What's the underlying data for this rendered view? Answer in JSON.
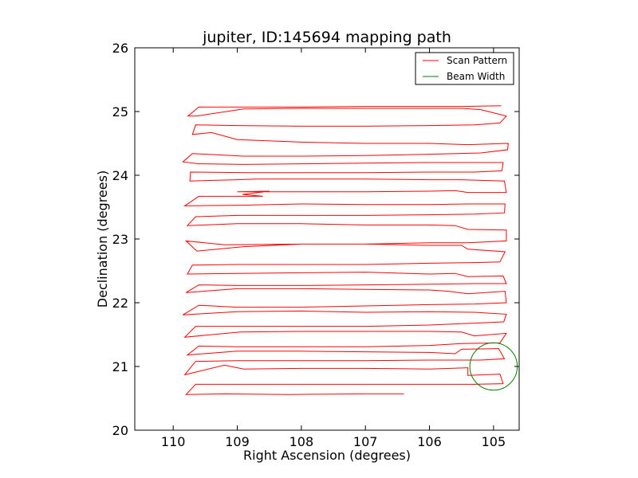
{
  "chart_data": {
    "type": "line",
    "title": "jupiter, ID:145694 mapping path",
    "xlabel": "Right Ascension (degrees)",
    "ylabel": "Declination (degrees)",
    "xlim": [
      110.6,
      104.6
    ],
    "ylim": [
      20,
      26
    ],
    "xticks": [
      110,
      109,
      108,
      107,
      106,
      105
    ],
    "yticks": [
      20,
      21,
      22,
      23,
      24,
      25,
      26
    ],
    "xtick_labels": [
      "110",
      "109",
      "108",
      "107",
      "106",
      "105"
    ],
    "ytick_labels": [
      "20",
      "21",
      "22",
      "23",
      "24",
      "25",
      "26"
    ],
    "grid": false,
    "legend_position": "top-right",
    "series": [
      {
        "name": "Scan Pattern",
        "color": "#ff0000",
        "points": [
          [
            106.4,
            20.57
          ],
          [
            107.0,
            20.57
          ],
          [
            108.2,
            20.56
          ],
          [
            109.2,
            20.57
          ],
          [
            109.8,
            20.56
          ],
          [
            109.65,
            20.72
          ],
          [
            109.0,
            20.72
          ],
          [
            108.0,
            20.72
          ],
          [
            107.0,
            20.72
          ],
          [
            106.0,
            20.72
          ],
          [
            105.3,
            20.72
          ],
          [
            104.85,
            20.73
          ],
          [
            104.9,
            20.88
          ],
          [
            105.4,
            20.86
          ],
          [
            105.4,
            20.98
          ],
          [
            106.0,
            20.96
          ],
          [
            107.0,
            20.97
          ],
          [
            108.0,
            20.97
          ],
          [
            108.9,
            20.96
          ],
          [
            109.2,
            21.02
          ],
          [
            109.82,
            20.87
          ],
          [
            109.65,
            21.08
          ],
          [
            109.0,
            21.09
          ],
          [
            108.0,
            21.09
          ],
          [
            107.0,
            21.09
          ],
          [
            106.0,
            21.1
          ],
          [
            105.2,
            21.1
          ],
          [
            104.83,
            21.12
          ],
          [
            104.92,
            21.28
          ],
          [
            105.5,
            21.27
          ],
          [
            105.6,
            21.2
          ],
          [
            106.0,
            21.22
          ],
          [
            107.0,
            21.23
          ],
          [
            108.0,
            21.24
          ],
          [
            109.0,
            21.24
          ],
          [
            109.78,
            21.18
          ],
          [
            109.6,
            21.32
          ],
          [
            109.0,
            21.31
          ],
          [
            108.0,
            21.31
          ],
          [
            107.0,
            21.31
          ],
          [
            106.0,
            21.33
          ],
          [
            105.5,
            21.36
          ],
          [
            104.9,
            21.37
          ],
          [
            104.8,
            21.52
          ],
          [
            105.3,
            21.48
          ],
          [
            105.5,
            21.54
          ],
          [
            106.0,
            21.55
          ],
          [
            107.0,
            21.55
          ],
          [
            108.0,
            21.55
          ],
          [
            108.95,
            21.54
          ],
          [
            109.82,
            21.46
          ],
          [
            109.65,
            21.63
          ],
          [
            109.0,
            21.63
          ],
          [
            108.0,
            21.63
          ],
          [
            107.0,
            21.63
          ],
          [
            106.0,
            21.65
          ],
          [
            105.3,
            21.68
          ],
          [
            104.84,
            21.7
          ],
          [
            104.8,
            21.82
          ],
          [
            105.3,
            21.85
          ],
          [
            106.0,
            21.86
          ],
          [
            107.0,
            21.85
          ],
          [
            108.0,
            21.87
          ],
          [
            109.0,
            21.86
          ],
          [
            109.85,
            21.81
          ],
          [
            109.6,
            21.96
          ],
          [
            109.0,
            21.93
          ],
          [
            108.0,
            21.93
          ],
          [
            107.0,
            21.95
          ],
          [
            106.0,
            21.97
          ],
          [
            105.3,
            21.98
          ],
          [
            104.8,
            22.0
          ],
          [
            104.82,
            22.18
          ],
          [
            105.4,
            22.14
          ],
          [
            105.7,
            22.18
          ],
          [
            106.0,
            22.2
          ],
          [
            107.0,
            22.21
          ],
          [
            108.0,
            22.22
          ],
          [
            109.0,
            22.22
          ],
          [
            109.8,
            22.16
          ],
          [
            109.6,
            22.28
          ],
          [
            109.0,
            22.27
          ],
          [
            108.0,
            22.27
          ],
          [
            107.0,
            22.28
          ],
          [
            106.0,
            22.29
          ],
          [
            105.3,
            22.3
          ],
          [
            104.8,
            22.3
          ],
          [
            104.85,
            22.42
          ],
          [
            105.4,
            22.41
          ],
          [
            105.6,
            22.46
          ],
          [
            106.0,
            22.45
          ],
          [
            107.0,
            22.48
          ],
          [
            108.0,
            22.47
          ],
          [
            109.0,
            22.46
          ],
          [
            109.78,
            22.45
          ],
          [
            109.7,
            22.59
          ],
          [
            109.0,
            22.6
          ],
          [
            108.0,
            22.6
          ],
          [
            107.0,
            22.6
          ],
          [
            106.0,
            22.62
          ],
          [
            105.3,
            22.63
          ],
          [
            104.9,
            22.64
          ],
          [
            104.82,
            22.8
          ],
          [
            105.4,
            22.84
          ],
          [
            105.5,
            22.9
          ],
          [
            106.0,
            22.9
          ],
          [
            107.0,
            22.92
          ],
          [
            108.0,
            22.92
          ],
          [
            108.9,
            22.88
          ],
          [
            109.63,
            22.81
          ],
          [
            109.8,
            22.97
          ],
          [
            109.2,
            22.91
          ],
          [
            108.0,
            22.92
          ],
          [
            107.0,
            22.92
          ],
          [
            106.0,
            22.94
          ],
          [
            105.4,
            22.94
          ],
          [
            104.8,
            22.97
          ],
          [
            104.8,
            23.14
          ],
          [
            105.4,
            23.15
          ],
          [
            105.6,
            23.21
          ],
          [
            106.0,
            23.22
          ],
          [
            107.0,
            23.22
          ],
          [
            108.0,
            23.24
          ],
          [
            109.0,
            23.24
          ],
          [
            109.78,
            23.21
          ],
          [
            109.65,
            23.35
          ],
          [
            109.0,
            23.37
          ],
          [
            108.0,
            23.37
          ],
          [
            107.0,
            23.37
          ],
          [
            106.0,
            23.38
          ],
          [
            105.3,
            23.39
          ],
          [
            104.83,
            23.41
          ],
          [
            104.82,
            23.55
          ],
          [
            105.4,
            23.55
          ],
          [
            106.0,
            23.54
          ],
          [
            107.0,
            23.54
          ],
          [
            108.0,
            23.55
          ],
          [
            108.95,
            23.53
          ],
          [
            109.82,
            23.52
          ],
          [
            109.6,
            23.67
          ],
          [
            108.6,
            23.67
          ],
          [
            108.92,
            23.7
          ],
          [
            108.5,
            23.75
          ],
          [
            109.0,
            23.74
          ],
          [
            108.0,
            23.74
          ],
          [
            107.0,
            23.74
          ],
          [
            106.0,
            23.75
          ],
          [
            105.6,
            23.76
          ],
          [
            105.4,
            23.73
          ],
          [
            104.8,
            23.73
          ],
          [
            104.83,
            23.91
          ],
          [
            105.5,
            23.93
          ],
          [
            106.0,
            23.93
          ],
          [
            107.0,
            23.94
          ],
          [
            108.0,
            23.94
          ],
          [
            108.7,
            23.94
          ],
          [
            109.0,
            23.93
          ],
          [
            109.74,
            23.91
          ],
          [
            109.73,
            24.05
          ],
          [
            108.8,
            24.04
          ],
          [
            108.0,
            24.04
          ],
          [
            107.0,
            24.04
          ],
          [
            106.0,
            24.05
          ],
          [
            105.3,
            24.05
          ],
          [
            104.87,
            24.07
          ],
          [
            104.85,
            24.2
          ],
          [
            105.5,
            24.2
          ],
          [
            106.0,
            24.2
          ],
          [
            107.0,
            24.19
          ],
          [
            108.0,
            24.18
          ],
          [
            108.9,
            24.17
          ],
          [
            109.6,
            24.18
          ],
          [
            109.85,
            24.21
          ],
          [
            109.7,
            24.34
          ],
          [
            108.9,
            24.3
          ],
          [
            108.0,
            24.3
          ],
          [
            107.0,
            24.31
          ],
          [
            106.0,
            24.33
          ],
          [
            105.2,
            24.35
          ],
          [
            104.78,
            24.4
          ],
          [
            104.77,
            24.5
          ],
          [
            105.4,
            24.48
          ],
          [
            106.0,
            24.5
          ],
          [
            107.0,
            24.5
          ],
          [
            108.0,
            24.52
          ],
          [
            109.0,
            24.56
          ],
          [
            109.4,
            24.67
          ],
          [
            109.7,
            24.64
          ],
          [
            109.65,
            24.79
          ],
          [
            109.0,
            24.78
          ],
          [
            108.0,
            24.77
          ],
          [
            107.0,
            24.77
          ],
          [
            106.0,
            24.78
          ],
          [
            105.3,
            24.79
          ],
          [
            104.9,
            24.82
          ],
          [
            104.8,
            24.93
          ],
          [
            105.2,
            25.03
          ],
          [
            105.5,
            25.05
          ],
          [
            106.0,
            25.05
          ],
          [
            107.0,
            25.05
          ],
          [
            108.0,
            25.05
          ],
          [
            108.9,
            25.04
          ],
          [
            109.63,
            24.93
          ],
          [
            109.77,
            24.93
          ],
          [
            109.6,
            25.07
          ],
          [
            109.0,
            25.07
          ],
          [
            108.0,
            25.07
          ],
          [
            107.0,
            25.08
          ],
          [
            106.0,
            25.08
          ],
          [
            105.5,
            25.08
          ],
          [
            104.88,
            25.09
          ]
        ]
      },
      {
        "name": "Beam Width",
        "color": "#008000",
        "shape": "circle",
        "center": [
          105.0,
          21.0
        ],
        "radius_deg": 0.37
      }
    ],
    "legend": [
      "Scan Pattern",
      "Beam Width"
    ]
  }
}
